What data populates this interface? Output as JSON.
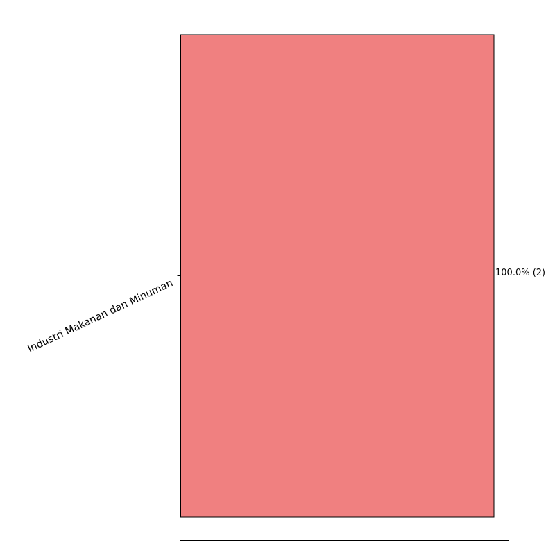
{
  "chart_data": {
    "type": "bar",
    "orientation": "horizontal",
    "categories": [
      "Industri Makanan dan Minuman"
    ],
    "values": [
      100.0
    ],
    "counts": [
      2
    ],
    "data_labels": [
      "100.0% (2)"
    ],
    "xlim": [
      0,
      100
    ],
    "title": "",
    "xlabel": "",
    "ylabel": "",
    "grid": false,
    "bar_color": "#F08080",
    "bar_edge_color": "#000000"
  }
}
